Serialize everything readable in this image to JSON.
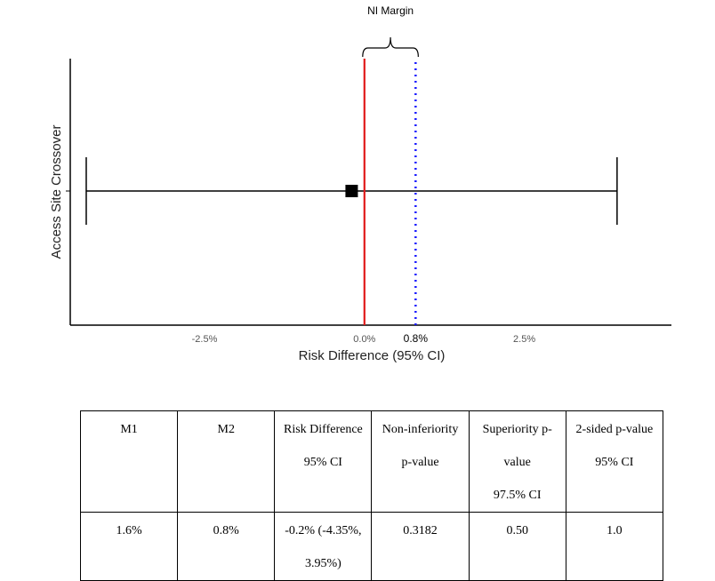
{
  "chart_data": {
    "type": "forest",
    "annotation": "NI Margin",
    "ylabel": "Access Site Crossover",
    "xlabel": "Risk Difference (95% CI)",
    "xlim": [
      -4.6,
      4.8
    ],
    "ticks": [
      {
        "value": -2.5,
        "label": "-2.5%"
      },
      {
        "value": 0.0,
        "label": "0.0%"
      },
      {
        "value": 0.8,
        "label": "0.8%"
      },
      {
        "value": 2.5,
        "label": "2.5%"
      }
    ],
    "point_estimate": -0.2,
    "ci_lower": -4.35,
    "ci_upper": 3.95,
    "null_line": 0.0,
    "null_color": "#e11b1b",
    "ni_margin": 0.8,
    "ni_color": "#1a1aff",
    "point_color": "#000000"
  },
  "table": {
    "headers": [
      [
        "M1"
      ],
      [
        "M2"
      ],
      [
        "Risk Difference",
        "95% CI"
      ],
      [
        "Non-inferiority",
        "p-value"
      ],
      [
        "Superiority p-value",
        "97.5% CI"
      ],
      [
        "2-sided p-value",
        "95% CI"
      ]
    ],
    "row": [
      [
        "1.6%"
      ],
      [
        "0.8%"
      ],
      [
        "-0.2% (-4.35%,",
        "3.95%)"
      ],
      [
        "0.3182"
      ],
      [
        "0.50"
      ],
      [
        "1.0"
      ]
    ]
  }
}
